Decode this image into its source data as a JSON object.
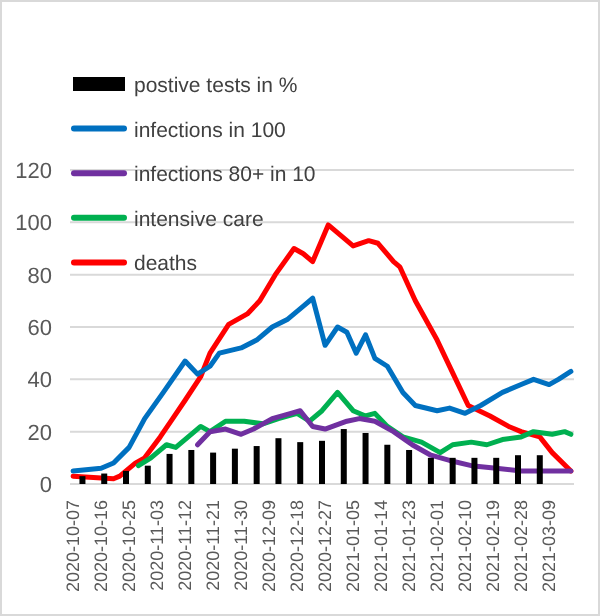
{
  "chart_data": {
    "type": "line",
    "xlim": [
      "2020-10-06",
      "2021-03-17"
    ],
    "xticks": [
      "2020-10-07",
      "2020-10-16",
      "2020-10-25",
      "2020-11-03",
      "2020-11-12",
      "2020-11-21",
      "2020-11-30",
      "2020-12-09",
      "2020-12-18",
      "2020-12-27",
      "2021-01-05",
      "2021-01-14",
      "2021-01-23",
      "2021-02-01",
      "2021-02-10",
      "2021-02-19",
      "2021-02-28",
      "2021-03-09"
    ],
    "ylim": [
      0,
      120
    ],
    "yticks": [
      0,
      20,
      40,
      60,
      80,
      100,
      120
    ],
    "grid": "y",
    "legend": "top left",
    "line_style": "solid",
    "marker": "none",
    "series": [
      {
        "name": "postive tests in %",
        "type": "bar",
        "color": "#000000",
        "x": [
          "2020-10-10",
          "2020-10-17",
          "2020-10-24",
          "2020-10-31",
          "2020-11-07",
          "2020-11-14",
          "2020-11-21",
          "2020-11-28",
          "2020-12-05",
          "2020-12-12",
          "2020-12-19",
          "2020-12-26",
          "2021-01-02",
          "2021-01-09",
          "2021-01-16",
          "2021-01-23",
          "2021-01-30",
          "2021-02-06",
          "2021-02-13",
          "2021-02-20",
          "2021-02-27",
          "2021-03-06"
        ],
        "values": [
          3,
          4,
          5,
          7,
          11.5,
          13,
          12,
          13.5,
          14.5,
          17.5,
          16,
          16.5,
          21,
          19.5,
          15,
          13,
          10,
          10,
          10,
          10,
          11,
          11
        ]
      },
      {
        "name": "infections in 100",
        "color": "#0070c0",
        "x": [
          "2020-10-07",
          "2020-10-16",
          "2020-10-20",
          "2020-10-25",
          "2020-10-30",
          "2020-11-05",
          "2020-11-12",
          "2020-11-16",
          "2020-11-20",
          "2020-11-23",
          "2020-11-30",
          "2020-12-05",
          "2020-12-10",
          "2020-12-15",
          "2020-12-20",
          "2020-12-23",
          "2020-12-27",
          "2020-12-31",
          "2021-01-03",
          "2021-01-06",
          "2021-01-09",
          "2021-01-12",
          "2021-01-16",
          "2021-01-21",
          "2021-01-25",
          "2021-02-01",
          "2021-02-05",
          "2021-02-10",
          "2021-02-15",
          "2021-02-22",
          "2021-02-28",
          "2021-03-04",
          "2021-03-09",
          "2021-03-12",
          "2021-03-16"
        ],
        "values": [
          5,
          6,
          8,
          14,
          25,
          35,
          47,
          42,
          45,
          50,
          52,
          55,
          60,
          63,
          68,
          71,
          53,
          60,
          58,
          50,
          57,
          48,
          45,
          35,
          30,
          28,
          29,
          27,
          30,
          35,
          38,
          40,
          38,
          40,
          43
        ]
      },
      {
        "name": "infections 80+ in 10",
        "color": "#7030a0",
        "x": [
          "2020-11-16",
          "2020-11-20",
          "2020-11-25",
          "2020-11-30",
          "2020-12-04",
          "2020-12-10",
          "2020-12-16",
          "2020-12-19",
          "2020-12-23",
          "2020-12-27",
          "2021-01-03",
          "2021-01-07",
          "2021-01-12",
          "2021-01-18",
          "2021-01-24",
          "2021-01-30",
          "2021-02-05",
          "2021-02-12",
          "2021-02-20",
          "2021-02-28",
          "2021-03-09",
          "2021-03-16"
        ],
        "values": [
          15,
          20,
          21,
          19,
          21,
          25,
          27,
          28,
          22,
          21,
          24,
          25,
          24,
          20,
          15,
          11,
          9,
          7,
          6,
          5,
          5,
          5
        ]
      },
      {
        "name": "intensive care",
        "color": "#00b050",
        "x": [
          "2020-10-28",
          "2020-11-01",
          "2020-11-06",
          "2020-11-09",
          "2020-11-13",
          "2020-11-17",
          "2020-11-20",
          "2020-11-25",
          "2020-12-01",
          "2020-12-07",
          "2020-12-12",
          "2020-12-18",
          "2020-12-22",
          "2020-12-26",
          "2020-12-31",
          "2021-01-05",
          "2021-01-09",
          "2021-01-12",
          "2021-01-16",
          "2021-01-21",
          "2021-01-27",
          "2021-02-02",
          "2021-02-06",
          "2021-02-12",
          "2021-02-17",
          "2021-02-22",
          "2021-02-28",
          "2021-03-04",
          "2021-03-10",
          "2021-03-14",
          "2021-03-16"
        ],
        "values": [
          7,
          10,
          15,
          14,
          18,
          22,
          20,
          24,
          24,
          23,
          25,
          27,
          24,
          28,
          35,
          28,
          26,
          27,
          22,
          18,
          16,
          12,
          15,
          16,
          15,
          17,
          18,
          20,
          19,
          20,
          19
        ]
      },
      {
        "name": "deaths",
        "color": "#ff0000",
        "x": [
          "2020-10-07",
          "2020-10-20",
          "2020-10-22",
          "2020-10-27",
          "2020-10-30",
          "2020-11-04",
          "2020-11-08",
          "2020-11-12",
          "2020-11-17",
          "2020-11-20",
          "2020-11-26",
          "2020-12-02",
          "2020-12-06",
          "2020-12-11",
          "2020-12-17",
          "2020-12-20",
          "2020-12-23",
          "2020-12-28",
          "2021-01-01",
          "2021-01-05",
          "2021-01-10",
          "2021-01-13",
          "2021-01-18",
          "2021-01-20",
          "2021-01-25",
          "2021-02-01",
          "2021-02-07",
          "2021-02-11",
          "2021-02-18",
          "2021-02-24",
          "2021-02-28",
          "2021-03-06",
          "2021-03-10",
          "2021-03-16"
        ],
        "values": [
          3,
          2,
          3,
          8,
          10,
          18,
          25,
          32,
          41,
          50,
          61,
          65,
          70,
          80,
          90,
          88,
          85,
          99,
          95,
          91,
          93,
          92,
          85,
          83,
          70,
          55,
          40,
          30,
          26,
          22,
          20,
          18,
          12,
          5
        ]
      }
    ]
  }
}
